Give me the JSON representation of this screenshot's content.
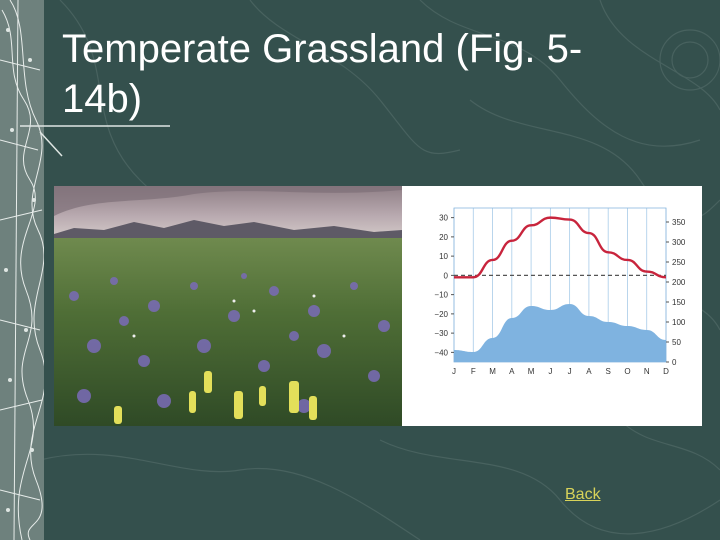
{
  "slide": {
    "title": "Temperate Grassland (Fig. 5-14b)",
    "back_link": "Back"
  },
  "chart_data": {
    "type": "line",
    "categories": [
      "J",
      "F",
      "M",
      "A",
      "M",
      "J",
      "J",
      "A",
      "S",
      "O",
      "N",
      "D"
    ],
    "temperature_axis": {
      "ticks": [
        30,
        20,
        10,
        0,
        -10,
        -20,
        -30,
        -40
      ],
      "ylim": [
        -45,
        35
      ]
    },
    "precipitation_axis": {
      "ticks": [
        350,
        300,
        250,
        200,
        150,
        100,
        50,
        0
      ],
      "ylim": [
        0,
        385
      ]
    },
    "series": [
      {
        "values": [
          -1,
          -1,
          8,
          18,
          26,
          30,
          29,
          22,
          12,
          8,
          2,
          -1
        ],
        "color": "#c8243c",
        "kind": "line"
      },
      {
        "values": [
          30,
          25,
          60,
          110,
          140,
          130,
          145,
          115,
          100,
          90,
          80,
          55
        ],
        "color": "#7fb3e0",
        "kind": "area"
      }
    ],
    "reference_line": {
      "value": 0,
      "style": "dashed"
    },
    "grid": true
  },
  "colors": {
    "background": "#34504d",
    "title": "#ffffff",
    "link": "#d8d35a",
    "temperature": "#c8243c",
    "precipitation": "#7fb3e0"
  }
}
